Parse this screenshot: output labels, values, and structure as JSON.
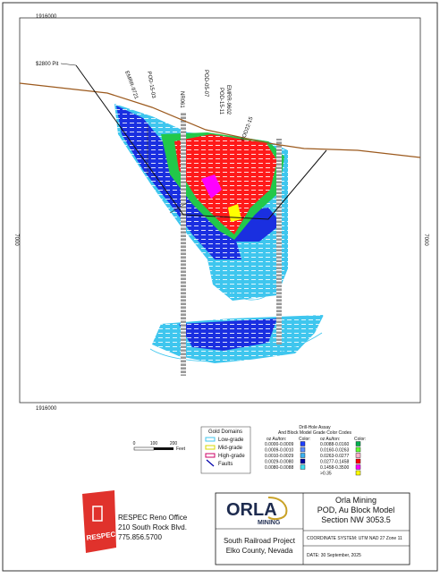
{
  "map": {
    "grid_labels": [
      "1916000",
      "1916000",
      "7000",
      "7000"
    ],
    "pit_label": "$2800 Pit",
    "drill_holes": [
      "EMRR-9721",
      "POD-15-03",
      "NR061",
      "POD-05-07",
      "EMRR-9602",
      "POD-15-11",
      "POD22-15"
    ]
  },
  "legend": {
    "gold_domains": {
      "title": "Gold Domains",
      "items": [
        "Low-grade",
        "Mid-grade",
        "High-grade",
        "Faults"
      ]
    },
    "grade_codes": {
      "title_lines": [
        "Drill-Hole Assay",
        "And Block Model Grade Color Codes"
      ],
      "headers": [
        "oz Au/ton:",
        "Color:",
        "oz Au/ton:",
        "Color:"
      ],
      "ranges": [
        {
          "label": "0.0000-0.0009",
          "color": "#1f3fff"
        },
        {
          "label": "0.0009-0.0010",
          "color": "#5a8cff"
        },
        {
          "label": "0.0010-0.0029",
          "color": "#3bb0f0"
        },
        {
          "label": "0.0029-0.0080",
          "color": "#0000a0"
        },
        {
          "label": "0.0080-0.0088",
          "color": "#40e0f0"
        },
        {
          "label": "0.0088-0.0160",
          "color": "#00b050"
        },
        {
          "label": "0.0160-0.0263",
          "color": "#66ff33"
        },
        {
          "label": "0.0263-0.0277",
          "color": "#ffb0c8"
        },
        {
          "label": "0.0277-0.1458",
          "color": "#ff0000"
        },
        {
          "label": "0.1458-0.3500",
          "color": "#ff00ff"
        },
        {
          "label": ">0.35",
          "color": "#ffff00"
        }
      ]
    }
  },
  "scale_bar": {
    "labels": [
      "0",
      "100",
      "200",
      "Feet"
    ]
  },
  "respec": {
    "logo": "RESPEC",
    "lines": [
      "RESPEC Reno Office",
      "210 South Rock Blvd.",
      "775.856.5700"
    ]
  },
  "title_block": {
    "logo_word": "ORLA",
    "logo_sub": "MINING",
    "company": "Orla Mining",
    "subtitle": "POD, Au Block Model",
    "section": "Section NW 3053.5",
    "project": "South Railroad Project",
    "county": "Elko County, Nevada",
    "coordinates": "COORDINATE SYSTEM: UTM NAD 27 Zone 11",
    "date": "DATE: 30 September, 2025"
  }
}
